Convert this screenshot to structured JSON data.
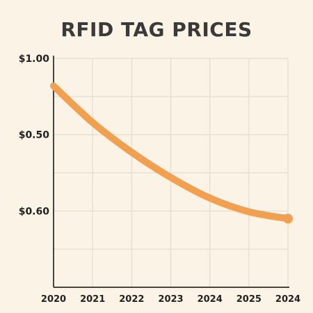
{
  "chart_data": {
    "type": "line",
    "title": "RFID TAG PRICES",
    "xlabel": "",
    "ylabel": "",
    "x": [
      "2020",
      "2021",
      "2022",
      "2023",
      "2024",
      "2025",
      "2024"
    ],
    "y_tick_labels": [
      "$1.00",
      "$0.50",
      "$0.60"
    ],
    "series": [
      {
        "values": [
          0.88,
          0.72,
          0.59,
          0.48,
          0.39,
          0.33,
          0.3
        ]
      }
    ],
    "ylim": [
      0,
      1.0
    ],
    "grid": true,
    "legend": "none",
    "line_color": "#f0a050",
    "grid_color": "#e2dccf",
    "axis_color": "#444444",
    "background": "#fbf3e6"
  }
}
